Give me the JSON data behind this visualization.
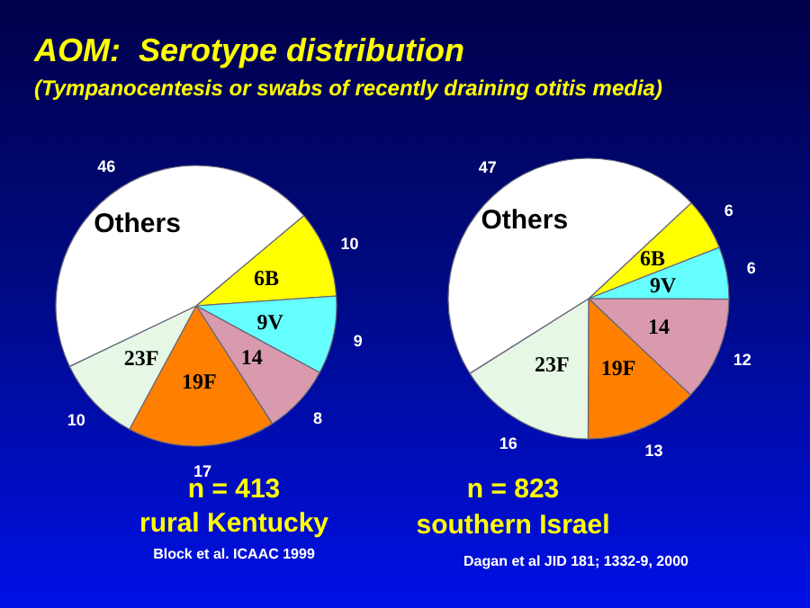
{
  "chart_data": [
    {
      "type": "pie",
      "title": "AOM:  Serotype distribution",
      "subtitle": "(Tympanocentesis or swabs of recently draining otitis media)",
      "categories": [
        "6B",
        "9V",
        "14",
        "19F",
        "23F",
        "Others"
      ],
      "values": [
        10,
        9,
        8,
        17,
        10,
        46
      ],
      "colors": [
        "#ffff00",
        "#66ffff",
        "#d99aae",
        "#ff8000",
        "#e6f7e6",
        "#ffffff"
      ],
      "data_labels": true,
      "annotations": [
        "n = 413",
        "rural Kentucky",
        "Block et al. ICAAC 1999"
      ]
    },
    {
      "type": "pie",
      "categories": [
        "6B",
        "9V",
        "14",
        "19F",
        "23F",
        "Others"
      ],
      "values": [
        6,
        6,
        12,
        13,
        16,
        47
      ],
      "colors": [
        "#ffff00",
        "#66ffff",
        "#d99aae",
        "#ff8000",
        "#e6f7e6",
        "#ffffff"
      ],
      "data_labels": true,
      "annotations": [
        "n = 823",
        "southern Israel",
        "Dagan et al JID 181; 1332-9, 2000"
      ]
    }
  ]
}
